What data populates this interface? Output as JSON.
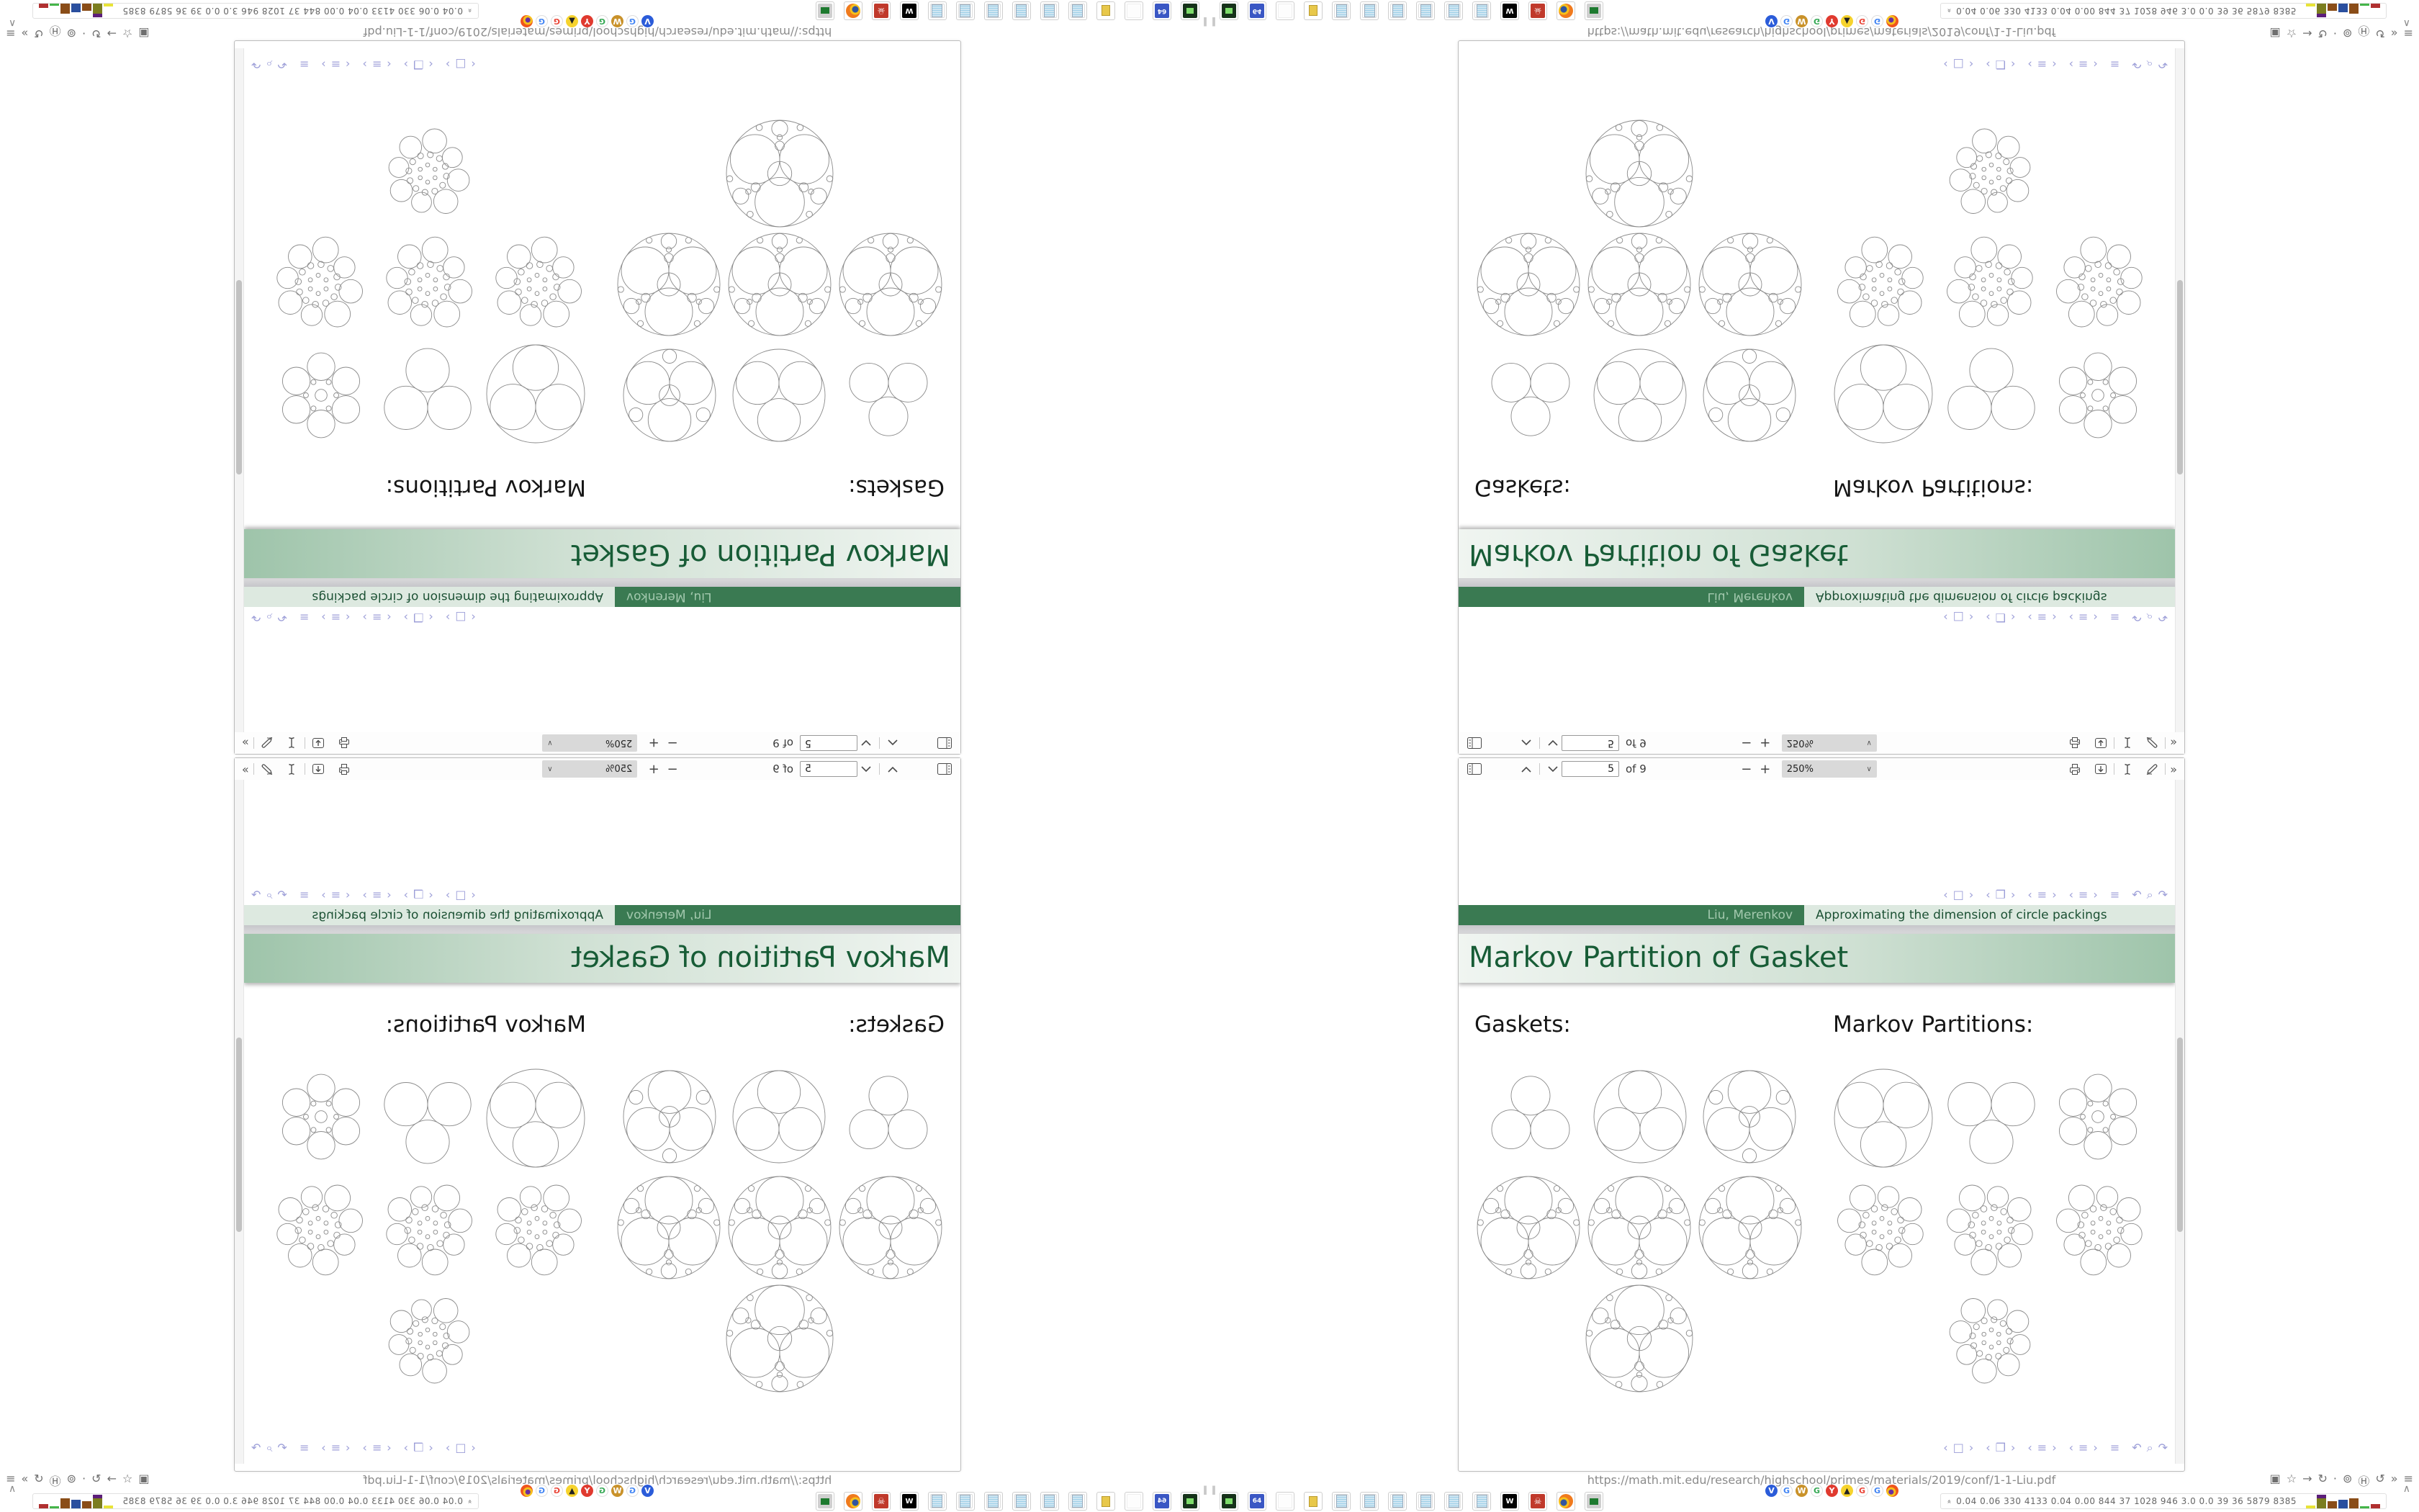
{
  "slide": {
    "frametitle": "Markov Partition of Gasket",
    "footline_author": "Liu, Merenkov",
    "footline_title": "Approximating the dimension of circle packings",
    "label_gaskets": "Gaskets:",
    "label_partitions": "Markov Partitions:",
    "nav": {
      "slide_prev": "‹",
      "slide_icon": "□",
      "slide_next": "›",
      "frame_prev": "‹",
      "frame_icon": "❐",
      "frame_next": "›",
      "section_prev": "‹",
      "section_icon": "≡",
      "section_next": "›",
      "subsection_prev": "‹",
      "subsection_icon": "≡",
      "subsection_next": "›",
      "appendix_icon": "≡",
      "back_icon": "↶",
      "search_icon": "⌕",
      "forward_icon": "↷"
    }
  },
  "pdf_viewer": {
    "page_input": "5",
    "page_count_label": "of 9",
    "zoom_out_label": "−",
    "zoom_in_label": "+",
    "zoom_value": "250%",
    "zoom_chevron": "∨",
    "more_tools_label": "»"
  },
  "browser": {
    "url": "https://math.mit.edu/research/highschool/primes/materials/2019/conf/1-1-Liu.pdf",
    "caption_icons": [
      {
        "name": "picture-icon",
        "glyph": "▣"
      },
      {
        "name": "star-icon",
        "glyph": "☆"
      },
      {
        "name": "arrow-icon",
        "glyph": "→"
      },
      {
        "name": "reload-icon",
        "glyph": "↻"
      },
      {
        "name": "dot-icon",
        "glyph": "·"
      },
      {
        "name": "globe-icon",
        "glyph": "⊚"
      },
      {
        "name": "badge-icon",
        "glyph": "Ⓗ"
      },
      {
        "name": "history-icon",
        "glyph": "↺"
      },
      {
        "name": "chevrons-icon",
        "glyph": "»"
      },
      {
        "name": "menu-icon",
        "glyph": "≡"
      }
    ]
  },
  "favicons": [
    {
      "name": "dart-favicon",
      "letter": "V",
      "bg": "#2b5cd9",
      "fg": "#ffffff"
    },
    {
      "name": "google-favicon",
      "letter": "G",
      "bg": "#ffffff",
      "fg": "#4285f4"
    },
    {
      "name": "coin-favicon",
      "letter": "W",
      "bg": "#c9922a",
      "fg": "#ffffff"
    },
    {
      "name": "google-favicon",
      "letter": "G",
      "bg": "#ffffff",
      "fg": "#34a853"
    },
    {
      "name": "yandex-favicon",
      "letter": "Y",
      "bg": "#e03a2f",
      "fg": "#ffffff"
    },
    {
      "name": "photo-favicon",
      "letter": "▲",
      "bg": "#f6d32d",
      "fg": "#222222"
    },
    {
      "name": "google-favicon",
      "letter": "G",
      "bg": "#ffffff",
      "fg": "#ea4335"
    },
    {
      "name": "google-favicon",
      "letter": "G",
      "bg": "#ffffff",
      "fg": "#4285f4"
    },
    {
      "name": "firefox-favicon",
      "letter": "",
      "bg": "firefox",
      "fg": "#ffffff"
    }
  ],
  "dock": [
    {
      "name": "terminal-icon",
      "kind": "terminal",
      "glyph": ""
    },
    {
      "name": "floppy64-icon",
      "kind": "floppy",
      "glyph": "64"
    },
    {
      "name": "blank-icon",
      "kind": "blank",
      "glyph": ""
    },
    {
      "name": "folder-icon",
      "kind": "folder",
      "glyph": ""
    },
    {
      "name": "notepad-icon",
      "kind": "notepad",
      "glyph": ""
    },
    {
      "name": "notepad-icon",
      "kind": "notepad",
      "glyph": ""
    },
    {
      "name": "notepad-icon",
      "kind": "notepad",
      "glyph": ""
    },
    {
      "name": "notepad-icon",
      "kind": "notepad",
      "glyph": ""
    },
    {
      "name": "notepad-icon",
      "kind": "notepad",
      "glyph": ""
    },
    {
      "name": "notepad-icon",
      "kind": "notepad",
      "glyph": ""
    },
    {
      "name": "wolf-icon",
      "kind": "wolf",
      "glyph": "W"
    },
    {
      "name": "skull-icon",
      "kind": "skull",
      "glyph": "☠"
    },
    {
      "name": "firefox-icon",
      "kind": "firefox",
      "glyph": ""
    },
    {
      "name": "monitor-icon",
      "kind": "monitor",
      "glyph": ""
    }
  ],
  "tray": {
    "expand_glyph": "«",
    "stats": "0.04 0.06 330 4133 0.04 0.00 844  37  1028 946  3.0  0.0  39  36  5879 8385",
    "chevron": "∧",
    "pause_glyph": "‖",
    "bars": [
      {
        "c": "#e8e337",
        "h": 4
      },
      {
        "c": "#7b7d1e",
        "h": 14,
        "cap": "#5c1e7a"
      },
      {
        "c": "#8a4d18",
        "h": 10
      },
      {
        "c": "#2a4f9e",
        "h": 12
      },
      {
        "c": "#8a4d18",
        "h": 14
      },
      {
        "c": "#45b54a",
        "h": 3
      },
      {
        "c": "#b03030",
        "h": 6
      }
    ]
  },
  "colors": {
    "beamer_dark_green": "#3a7a52",
    "beamer_light_green": "#dde9e0",
    "frametitle_green": "#9ec4aa",
    "title_text": "#175c36",
    "nav_lavender": "#9c9ed8"
  }
}
